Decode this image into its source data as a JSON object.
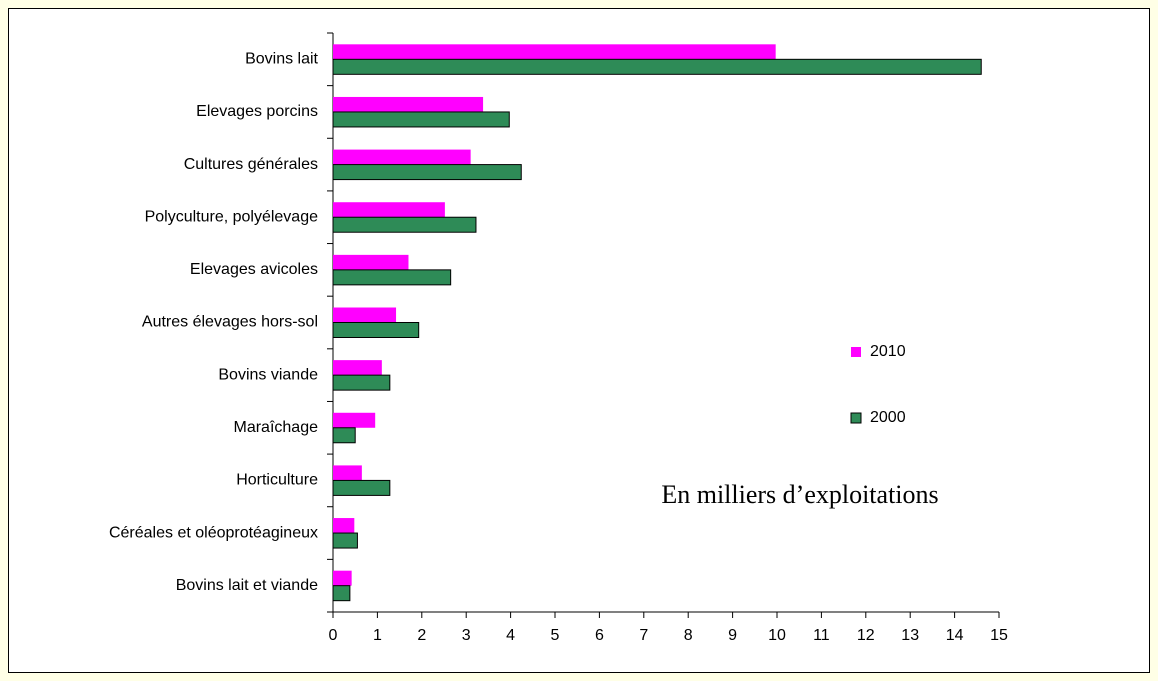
{
  "chart_data": {
    "type": "hbar",
    "categories": [
      "Bovins lait",
      "Elevages porcins",
      "Cultures générales",
      "Polyculture, polyélevage",
      "Elevages avicoles",
      "Autres élevages hors-sol",
      "Bovins viande",
      "Maraîchage",
      "Horticulture",
      "Céréales et oléoprotéagineux",
      "Bovins lait et viande"
    ],
    "series": [
      {
        "name": "2010",
        "color": "#ff00ff",
        "values": [
          9.97,
          3.38,
          3.1,
          2.52,
          1.7,
          1.42,
          1.1,
          0.95,
          0.65,
          0.48,
          0.42
        ]
      },
      {
        "name": "2000",
        "color": "#2e8b57",
        "values": [
          14.6,
          3.97,
          4.24,
          3.22,
          2.65,
          1.93,
          1.28,
          0.5,
          1.28,
          0.55,
          0.38
        ]
      }
    ],
    "xlim": [
      0,
      15
    ],
    "xticks": [
      0,
      1,
      2,
      3,
      4,
      5,
      6,
      7,
      8,
      9,
      10,
      11,
      12,
      13,
      14,
      15
    ],
    "annotation": "En milliers d’exploitations",
    "legend": "right"
  }
}
